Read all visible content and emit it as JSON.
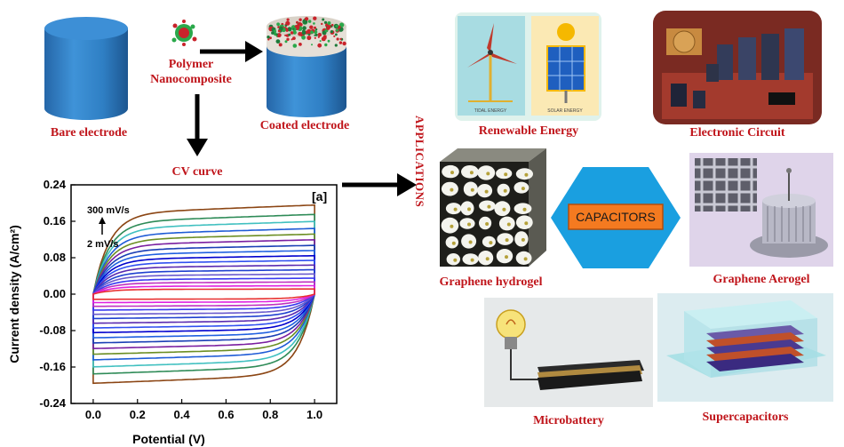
{
  "process": {
    "bare_label": "Bare electrode",
    "polymer_label_1": "Polymer",
    "polymer_label_2": "Nanocomposite",
    "coated_label": "Coated electrode",
    "cv_label": "CV curve",
    "applications_label": "APPLICATIONS"
  },
  "applications": {
    "renewable": "Renewable Energy",
    "renewable_tag_wind": "TIDAL ENERGY",
    "renewable_tag_solar": "SOLAR ENERGY",
    "electronic": "Electronic Circuit",
    "hydrogel": "Graphene hydrogel",
    "capacitors": "CAPACITORS",
    "aerogel": "Graphene Aerogel",
    "microbattery": "Microbattery",
    "supercapacitors": "Supercapacitors"
  },
  "colors": {
    "label_red": "#c0151b",
    "electrode_blue": "#2f7fc4",
    "hexagon_blue": "#1a9fe0",
    "capacitor_orange": "#f47a20"
  },
  "chart_data": {
    "type": "line",
    "panel_label": "[a]",
    "xlabel": "Potential (V)",
    "ylabel": "Current density (A/cm²)",
    "xlim": [
      -0.1,
      1.1
    ],
    "ylim": [
      -0.24,
      0.24
    ],
    "xticks": [
      "0.0",
      "0.2",
      "0.4",
      "0.6",
      "0.8",
      "1.0"
    ],
    "yticks": [
      "0.24",
      "0.16",
      "0.08",
      "0.00",
      "-0.08",
      "-0.16",
      "-0.24"
    ],
    "annotation_high": "300 mV/s",
    "annotation_low": "2 mV/s",
    "x_range": [
      0.0,
      1.0
    ],
    "series": [
      {
        "amplitude": 0.19,
        "color": "#8b4513"
      },
      {
        "amplitude": 0.17,
        "color": "#2e8b57"
      },
      {
        "amplitude": 0.155,
        "color": "#40c0c0"
      },
      {
        "amplitude": 0.14,
        "color": "#1e5bd6"
      },
      {
        "amplitude": 0.128,
        "color": "#6b8e23"
      },
      {
        "amplitude": 0.116,
        "color": "#7a1fa0"
      },
      {
        "amplitude": 0.104,
        "color": "#1a3fb5"
      },
      {
        "amplitude": 0.093,
        "color": "#2060e0"
      },
      {
        "amplitude": 0.082,
        "color": "#0000cd"
      },
      {
        "amplitude": 0.072,
        "color": "#3050f0"
      },
      {
        "amplitude": 0.062,
        "color": "#5a2ab0"
      },
      {
        "amplitude": 0.052,
        "color": "#2040d0"
      },
      {
        "amplitude": 0.043,
        "color": "#6a5acd"
      },
      {
        "amplitude": 0.034,
        "color": "#3a3af0"
      },
      {
        "amplitude": 0.026,
        "color": "#c030c0"
      },
      {
        "amplitude": 0.018,
        "color": "#e020e0"
      },
      {
        "amplitude": 0.011,
        "color": "#e83030"
      }
    ]
  }
}
